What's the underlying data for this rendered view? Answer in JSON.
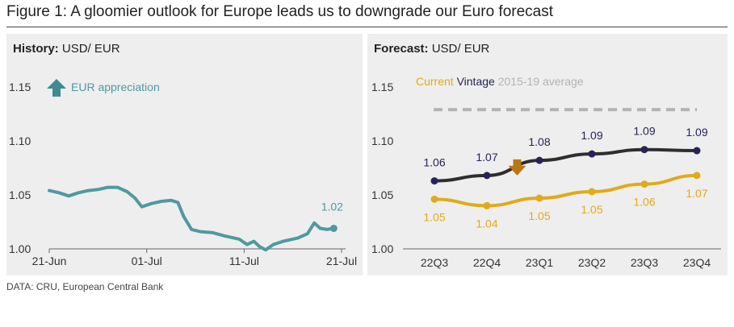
{
  "figure": {
    "title": "Figure 1: A gloomier outlook for Europe leads us to downgrade our Euro forecast",
    "source": "DATA: CRU, European Central Bank"
  },
  "colors": {
    "history_line": "#4e9aa0",
    "appreciation_arrow": "#3e8c90",
    "current": "#e0aa1a",
    "vintage": "#2e2e2e",
    "vintage_marker": "#25235a",
    "average": "#b3b3b3",
    "down_arrow": "#b87812",
    "panel_bg": "#eeeeee"
  },
  "chart_data": [
    {
      "type": "line",
      "panel_title_bold": "History:",
      "panel_title": "USD/ EUR",
      "annotation": "EUR appreciation",
      "yticks": [
        "1.15",
        "1.10",
        "1.05",
        "1.00"
      ],
      "ylim": [
        1.0,
        1.15
      ],
      "x_axis_days": [
        0,
        30
      ],
      "xticks": [
        {
          "day": 0,
          "label": "21-Jun"
        },
        {
          "day": 10,
          "label": "01-Jul"
        },
        {
          "day": 20,
          "label": "11-Jul"
        },
        {
          "day": 30,
          "label": "21-Jul"
        }
      ],
      "series": [
        {
          "name": "USD/ EUR",
          "points": [
            [
              0,
              1.054
            ],
            [
              1,
              1.052
            ],
            [
              2,
              1.049
            ],
            [
              3,
              1.052
            ],
            [
              4,
              1.054
            ],
            [
              5,
              1.055
            ],
            [
              6,
              1.057
            ],
            [
              7,
              1.057
            ],
            [
              8,
              1.053
            ],
            [
              8.8,
              1.047
            ],
            [
              9.5,
              1.039
            ],
            [
              10.5,
              1.042
            ],
            [
              11.5,
              1.044
            ],
            [
              12.5,
              1.045
            ],
            [
              13.2,
              1.043
            ],
            [
              13.8,
              1.03
            ],
            [
              14.6,
              1.018
            ],
            [
              15.5,
              1.016
            ],
            [
              16.8,
              1.015
            ],
            [
              18,
              1.012
            ],
            [
              19.5,
              1.009
            ],
            [
              20.3,
              1.004
            ],
            [
              21,
              1.007
            ],
            [
              21.6,
              1.002
            ],
            [
              22.2,
              0.999
            ],
            [
              23,
              1.004
            ],
            [
              24,
              1.007
            ],
            [
              25.5,
              1.01
            ],
            [
              26.5,
              1.014
            ],
            [
              27.2,
              1.024
            ],
            [
              27.8,
              1.019
            ],
            [
              28.5,
              1.018
            ],
            [
              29.2,
              1.019
            ]
          ],
          "last_value_label": "1.02"
        }
      ]
    },
    {
      "type": "line",
      "panel_title_bold": "Forecast:",
      "panel_title": "USD/ EUR",
      "yticks": [
        "1.15",
        "1.10",
        "1.05",
        "1.00"
      ],
      "ylim": [
        1.0,
        1.15
      ],
      "categories": [
        "22Q3",
        "22Q4",
        "23Q1",
        "23Q2",
        "23Q3",
        "23Q4"
      ],
      "legend": [
        "Current",
        "Vintage",
        "2015-19 average"
      ],
      "series": [
        {
          "name": "Current",
          "values": [
            1.046,
            1.04,
            1.047,
            1.053,
            1.06,
            1.068
          ],
          "labels": [
            "1.05",
            "1.04",
            "1.05",
            "1.05",
            "1.06",
            "1.07"
          ]
        },
        {
          "name": "Vintage",
          "values": [
            1.063,
            1.068,
            1.082,
            1.088,
            1.092,
            1.091
          ],
          "labels": [
            "1.06",
            "1.07",
            "1.08",
            "1.09",
            "1.09",
            "1.09"
          ]
        },
        {
          "name": "2015-19 average",
          "values": [
            1.129,
            1.129,
            1.129,
            1.129,
            1.129,
            1.129
          ]
        }
      ]
    }
  ]
}
